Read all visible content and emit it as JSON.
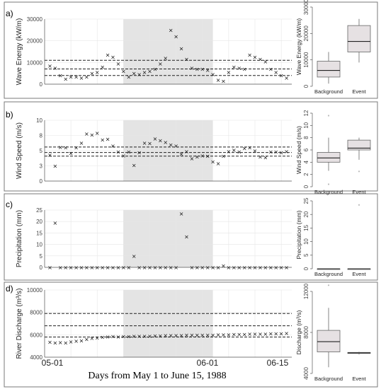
{
  "figure": {
    "x_axis_label": "Days from May 1 to June 15, 1988",
    "x_date_labels": [
      "05-01",
      "06-01",
      "06-15"
    ]
  },
  "chart_data": [
    {
      "type": "scatter",
      "panel": "a)",
      "ylabel": "Wave Energy (kW/m)",
      "ylim": [
        0,
        30000
      ],
      "yticks": [
        0,
        10000,
        20000,
        30000
      ],
      "event_window_days": [
        15,
        32
      ],
      "reference_lines": [
        4000,
        7000,
        11000
      ],
      "x": [
        1,
        2,
        3,
        4,
        5,
        6,
        7,
        8,
        9,
        10,
        11,
        12,
        13,
        14,
        15,
        16,
        17,
        18,
        19,
        20,
        21,
        22,
        23,
        24,
        25,
        26,
        27,
        28,
        29,
        30,
        31,
        32,
        33,
        34,
        35,
        36,
        37,
        38,
        39,
        40,
        41,
        42,
        43,
        44,
        45,
        46
      ],
      "values": [
        8500,
        7500,
        4000,
        2500,
        3500,
        3500,
        3000,
        3500,
        5000,
        5500,
        8000,
        13500,
        12500,
        9500,
        6000,
        3500,
        5000,
        4500,
        5500,
        6000,
        7000,
        9500,
        12000,
        25000,
        22000,
        16500,
        11500,
        7500,
        7000,
        7000,
        6500,
        4500,
        2000,
        1500,
        5500,
        8000,
        7500,
        7000,
        13500,
        12500,
        11500,
        10500,
        7000,
        5500,
        4000,
        3000
      ]
    },
    {
      "type": "box",
      "panel": "a)",
      "ylabel": "Wave Energy (kW/m)",
      "ylim": [
        0,
        30000
      ],
      "yticks": [
        0,
        10000,
        20000,
        30000
      ],
      "categories": [
        "Background",
        "Event"
      ],
      "boxes": [
        {
          "min": 1000,
          "q1": 3500,
          "median": 6000,
          "q3": 9500,
          "max": 13000,
          "outliers": []
        },
        {
          "min": 9000,
          "q1": 13000,
          "median": 17000,
          "q3": 23000,
          "max": 25500,
          "outliers": []
        }
      ]
    },
    {
      "type": "scatter",
      "panel": "b)",
      "ylabel": "Wind Speed (m/s)",
      "ylim": [
        0,
        10
      ],
      "yticks": [
        0.0,
        2.5,
        5.0,
        7.5,
        10.0
      ],
      "event_window_days": [
        15,
        32
      ],
      "reference_lines": [
        4.1,
        4.7,
        5.6
      ],
      "x": [
        1,
        2,
        3,
        4,
        5,
        6,
        7,
        8,
        9,
        10,
        11,
        12,
        13,
        14,
        15,
        16,
        17,
        18,
        19,
        20,
        21,
        22,
        23,
        24,
        25,
        26,
        27,
        28,
        29,
        30,
        31,
        32,
        33,
        34,
        35,
        36,
        37,
        38,
        39,
        40,
        41,
        42,
        43,
        44,
        45,
        46
      ],
      "values": [
        4.3,
        2.5,
        5.6,
        5.5,
        4.6,
        5.5,
        6.3,
        7.8,
        7.6,
        7.9,
        6.8,
        6.9,
        5.8,
        4.8,
        4.2,
        4.8,
        2.6,
        4.7,
        6.3,
        6.2,
        7.0,
        6.7,
        6.4,
        6.0,
        5.8,
        4.5,
        4.9,
        3.7,
        4.0,
        4.2,
        4.1,
        3.2,
        2.9,
        4.1,
        4.9,
        5.1,
        4.8,
        5.4,
        5.5,
        5.0,
        4.0,
        3.9,
        4.8,
        4.8,
        4.7,
        4.9
      ]
    },
    {
      "type": "box",
      "panel": "b)",
      "ylabel": "Wind Speed (m/s)",
      "ylim": [
        0,
        12
      ],
      "yticks": [
        0,
        2,
        4,
        6,
        8,
        10,
        12
      ],
      "categories": [
        "Background",
        "Event"
      ],
      "boxes": [
        {
          "min": 2.6,
          "q1": 4.0,
          "median": 4.7,
          "q3": 5.6,
          "max": 8.0,
          "outliers": [
            0.4,
            11.6
          ]
        },
        {
          "min": 4.4,
          "q1": 6.0,
          "median": 6.3,
          "q3": 7.6,
          "max": 8.0,
          "outliers": [
            2.5
          ]
        }
      ]
    },
    {
      "type": "scatter",
      "panel": "c)",
      "ylabel": "Precipitation (mm)",
      "ylim": [
        0,
        25
      ],
      "yticks": [
        0,
        5,
        10,
        15,
        20,
        25
      ],
      "event_window_days": [
        15,
        32
      ],
      "reference_lines": [],
      "x": [
        1,
        2,
        3,
        4,
        5,
        6,
        7,
        8,
        9,
        10,
        11,
        12,
        13,
        14,
        15,
        16,
        17,
        18,
        19,
        20,
        21,
        22,
        23,
        24,
        25,
        26,
        27,
        28,
        29,
        30,
        31,
        32,
        33,
        34,
        35,
        36,
        37,
        38,
        39,
        40,
        41,
        42,
        43,
        44,
        45,
        46
      ],
      "values": [
        0,
        19.5,
        0,
        0,
        0,
        0,
        0,
        0,
        0,
        0,
        0,
        0,
        0,
        0,
        0,
        0,
        5,
        0,
        0,
        0,
        0,
        0,
        0,
        0,
        0,
        23.5,
        13.5,
        0,
        0,
        0,
        0,
        0,
        0,
        0.8,
        0,
        0,
        0,
        0,
        0,
        0,
        0,
        0,
        0,
        0,
        0,
        0
      ]
    },
    {
      "type": "box",
      "panel": "c)",
      "ylabel": "Precipitation (mm)",
      "ylim": [
        0,
        25
      ],
      "yticks": [
        0,
        5,
        10,
        15,
        20,
        25
      ],
      "categories": [
        "Background",
        "Event"
      ],
      "boxes": [
        {
          "min": 0,
          "q1": 0,
          "median": 0,
          "q3": 0,
          "max": 0,
          "outliers": []
        },
        {
          "min": 0,
          "q1": 0,
          "median": 0,
          "q3": 0,
          "max": 0,
          "outliers": [
            23.5
          ]
        }
      ]
    },
    {
      "type": "scatter",
      "panel": "d)",
      "ylabel": "River Discharge (m³/s)",
      "ylim": [
        4000,
        10000
      ],
      "yticks": [
        4000,
        6000,
        8000,
        10000
      ],
      "event_window_days": [
        15,
        32
      ],
      "reference_lines": [
        5800,
        6800,
        7900
      ],
      "x": [
        1,
        2,
        3,
        4,
        5,
        6,
        7,
        8,
        9,
        10,
        11,
        12,
        13,
        14,
        15,
        16,
        17,
        18,
        19,
        20,
        21,
        22,
        23,
        24,
        25,
        26,
        27,
        28,
        29,
        30,
        31,
        32,
        33,
        34,
        35,
        36,
        37,
        38,
        39,
        40,
        41,
        42,
        43,
        44,
        45,
        46
      ],
      "values": [
        5350,
        5300,
        5320,
        5300,
        5400,
        5450,
        5500,
        5600,
        5700,
        5750,
        5800,
        5820,
        5850,
        5830,
        5850,
        5870,
        5880,
        5890,
        5900,
        5900,
        5920,
        5920,
        5950,
        5950,
        5960,
        5970,
        5980,
        5980,
        5990,
        6000,
        6000,
        6000,
        6010,
        6020,
        6030,
        6040,
        6050,
        6060,
        6070,
        6080,
        6090,
        6100,
        6110,
        6120,
        6130,
        6150
      ]
    },
    {
      "type": "box",
      "panel": "d)",
      "ylabel": "Discharge (m³/s)",
      "ylim": [
        4000,
        12000
      ],
      "yticks": [
        4000,
        8000,
        12000
      ],
      "categories": [
        "Background",
        "Event"
      ],
      "boxes": [
        {
          "min": 4600,
          "q1": 6100,
          "median": 7100,
          "q3": 8200,
          "max": 10400,
          "outliers": [
            12600
          ]
        },
        {
          "min": 5850,
          "q1": 5950,
          "median": 6000,
          "q3": 6050,
          "max": 6100,
          "outliers": []
        }
      ]
    }
  ]
}
